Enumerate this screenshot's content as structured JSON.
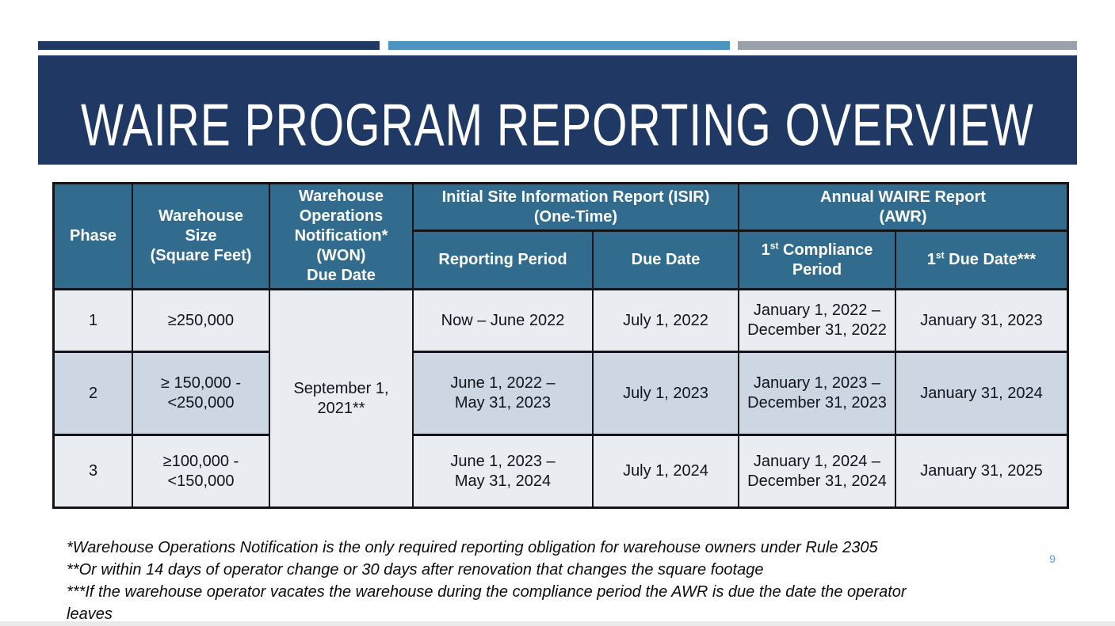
{
  "title": "WAIRE PROGRAM REPORTING OVERVIEW",
  "colors": {
    "navy": "#1F3864",
    "steel_blue": "#4A94BF",
    "gray": "#9BA1AA",
    "header_teal": "#316C8E",
    "row_light": "#E9EDF2",
    "row_dark": "#CDD6E3",
    "page_number_blue": "#5B9BD5"
  },
  "table": {
    "headers": {
      "phase": "Phase",
      "size": "Warehouse\nSize\n(Square Feet)",
      "won": "Warehouse\nOperations\nNotification*\n(WON)\nDue Date",
      "isir_group": "Initial Site Information Report (ISIR)\n(One-Time)",
      "awr_group": "Annual WAIRE Report\n(AWR)",
      "reporting_period": "Reporting Period",
      "due_date": "Due Date",
      "compliance": {
        "num": "1",
        "sup": "st",
        "rest": " Compliance\nPeriod"
      },
      "first_due": {
        "num": "1",
        "sup": "st",
        "rest": " Due Date***"
      }
    },
    "won_merged_value": "September 1,\n2021**",
    "rows": [
      {
        "phase": "1",
        "size": "≥250,000",
        "reporting_period": "Now – June 2022",
        "due_date": "July 1, 2022",
        "compliance_period": "January 1, 2022 –\nDecember 31, 2022",
        "first_due_date": "January 31, 2023"
      },
      {
        "phase": "2",
        "size": "≥ 150,000 -\n<250,000",
        "reporting_period": "June 1, 2022 –\nMay 31, 2023",
        "due_date": "July 1, 2023",
        "compliance_period": "January 1, 2023 –\nDecember 31, 2023",
        "first_due_date": "January 31, 2024"
      },
      {
        "phase": "3",
        "size": "≥100,000 -\n<150,000",
        "reporting_period": "June 1, 2023 –\nMay 31, 2024",
        "due_date": "July 1, 2024",
        "compliance_period": "January 1, 2024 –\nDecember 31, 2024",
        "first_due_date": "January 31, 2025"
      }
    ]
  },
  "footnotes": [
    "*Warehouse Operations Notification is the only required reporting obligation for warehouse owners under Rule 2305",
    "**Or within 14 days of operator change or 30 days after renovation that changes the square footage",
    "***If the warehouse operator vacates the warehouse during the compliance period the AWR is due the date the operator leaves"
  ],
  "page": {
    "number": "9"
  }
}
